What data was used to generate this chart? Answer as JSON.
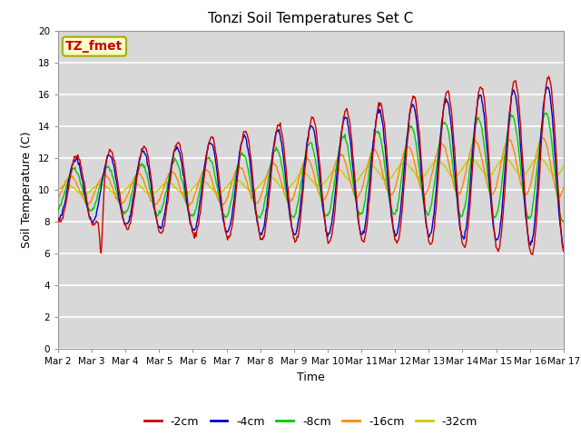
{
  "title": "Tonzi Soil Temperatures Set C",
  "xlabel": "Time",
  "ylabel": "Soil Temperature (C)",
  "annotation": "TZ_fmet",
  "ylim": [
    0,
    20
  ],
  "yticks": [
    0,
    2,
    4,
    6,
    8,
    10,
    12,
    14,
    16,
    18,
    20
  ],
  "xtick_labels": [
    "Mar 2",
    "Mar 3",
    "Mar 4",
    "Mar 5",
    "Mar 6",
    "Mar 7",
    "Mar 8",
    "Mar 9",
    "Mar 10",
    "Mar 11",
    "Mar 12",
    "Mar 13",
    "Mar 14",
    "Mar 15",
    "Mar 16",
    "Mar 17"
  ],
  "series_colors": [
    "#cc0000",
    "#0000cc",
    "#00cc00",
    "#ff8800",
    "#cccc00"
  ],
  "series_labels": [
    "-2cm",
    "-4cm",
    "-8cm",
    "-16cm",
    "-32cm"
  ],
  "bg_color": "#d8d8d8",
  "grid_color": "#ffffff",
  "legend_box_color": "#ffffcc",
  "annotation_text_color": "#cc0000",
  "annotation_border_color": "#aaaa00"
}
